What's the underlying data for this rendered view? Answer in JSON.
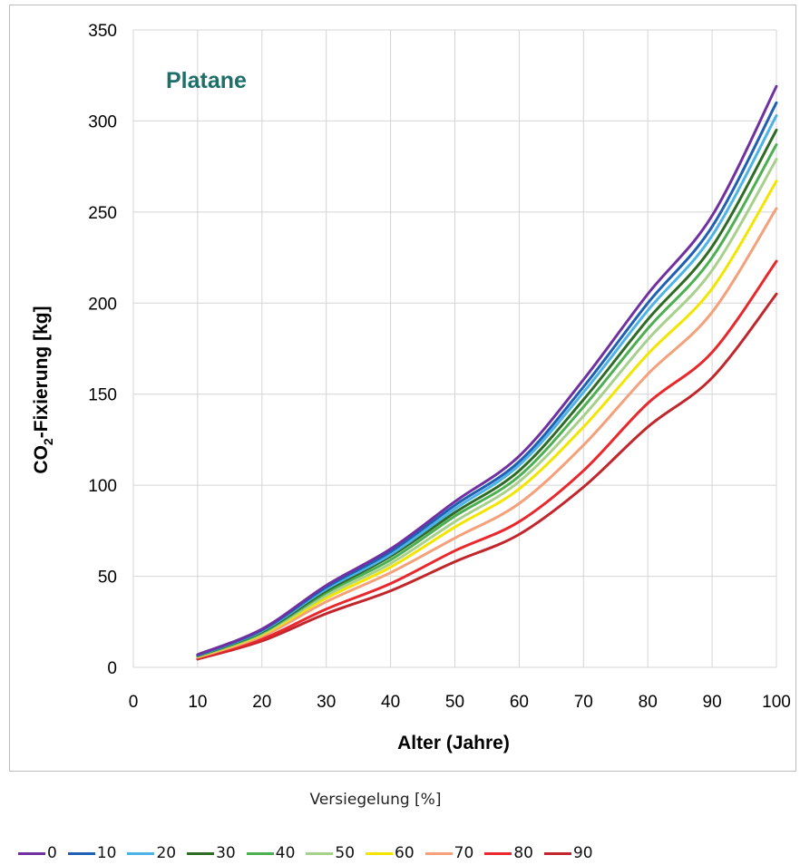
{
  "chart_data": {
    "type": "line",
    "title": "Platane",
    "title_color": "#1e6e6a",
    "xlabel": "Alter (Jahre)",
    "ylabel_main": "CO",
    "ylabel_sub": "2",
    "ylabel_rest": "-Fixierung [kg]",
    "xlim": [
      0,
      100
    ],
    "ylim": [
      0,
      350
    ],
    "x_ticks": [
      0,
      10,
      20,
      30,
      40,
      50,
      60,
      70,
      80,
      90,
      100
    ],
    "y_ticks": [
      0,
      50,
      100,
      150,
      200,
      250,
      300,
      350
    ],
    "grid": true,
    "legend_title": "Versiegelung [%]",
    "legend_position": "bottom",
    "x": [
      10,
      20,
      30,
      40,
      50,
      60,
      70,
      80,
      90,
      100
    ],
    "series": [
      {
        "name": "0",
        "color": "#7030a0",
        "values": [
          7,
          21,
          45,
          65,
          91,
          116,
          158,
          205,
          248,
          319
        ]
      },
      {
        "name": "10",
        "color": "#1f5fb4",
        "values": [
          6.8,
          20.5,
          44,
          63.5,
          89,
          113,
          154,
          200,
          242,
          310
        ]
      },
      {
        "name": "20",
        "color": "#4cb3e6",
        "values": [
          6.6,
          20,
          43,
          62,
          87,
          111,
          151,
          196,
          237,
          303
        ]
      },
      {
        "name": "30",
        "color": "#2e6b25",
        "values": [
          6.4,
          19.5,
          42,
          61,
          85,
          108,
          147,
          191,
          231,
          295
        ]
      },
      {
        "name": "40",
        "color": "#4caf50",
        "values": [
          6.2,
          19,
          41,
          59,
          83,
          105,
          143,
          186,
          225,
          287
        ]
      },
      {
        "name": "50",
        "color": "#a8d08d",
        "values": [
          6,
          18.5,
          39.5,
          57,
          80,
          102,
          138,
          180,
          218,
          279
        ]
      },
      {
        "name": "60",
        "color": "#f2e600",
        "values": [
          5.8,
          18,
          38,
          55,
          77,
          98,
          132,
          172,
          208,
          267
        ]
      },
      {
        "name": "70",
        "color": "#f4a07a",
        "values": [
          5.5,
          17,
          36,
          52,
          71,
          90,
          122,
          161,
          195,
          252
        ]
      },
      {
        "name": "80",
        "color": "#e8282c",
        "values": [
          5,
          15.5,
          32,
          46,
          64,
          80,
          108,
          145,
          173,
          223
        ]
      },
      {
        "name": "90",
        "color": "#c0262b",
        "values": [
          4.5,
          14.5,
          29.5,
          42,
          58,
          73,
          99,
          132,
          159,
          205
        ]
      }
    ]
  }
}
